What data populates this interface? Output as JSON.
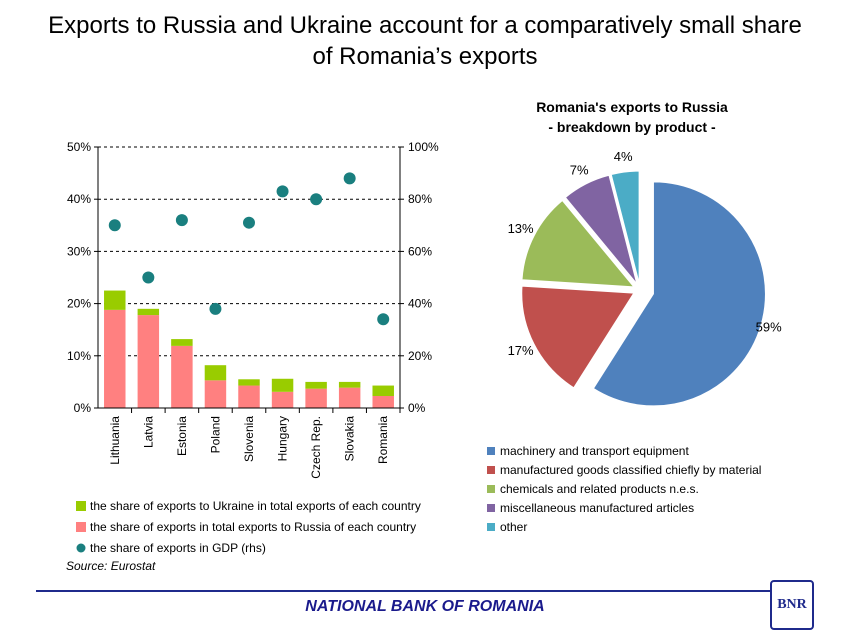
{
  "page": {
    "title_line1": "Exports to Russia and Ukraine account for a comparatively small share",
    "title_line2": "of Romania’s exports",
    "source": "Source: Eurostat",
    "footer": "NATIONAL BANK OF ROMANIA",
    "logo_text": "BNR"
  },
  "chart_data": [
    {
      "type": "bar",
      "stacked": true,
      "categories": [
        "Lithuania",
        "Latvia",
        "Estonia",
        "Poland",
        "Slovenia",
        "Hungary",
        "Czech Rep.",
        "Slovakia",
        "Romania"
      ],
      "series": [
        {
          "name": "the share of exports in total exports to Russia of each country",
          "color": "#ff8080",
          "values": [
            18.8,
            17.8,
            11.9,
            5.3,
            4.3,
            3.1,
            3.7,
            3.9,
            2.3
          ]
        },
        {
          "name": "the share of exports to Ukraine in total exports of each country",
          "color": "#99cc00",
          "values": [
            3.7,
            1.2,
            1.3,
            2.9,
            1.2,
            2.5,
            1.3,
            1.1,
            2.0
          ]
        }
      ],
      "secondary_series": {
        "name": "the share of exports in GDP (rhs)",
        "type": "scatter",
        "color": "#1a7f7f",
        "values": [
          70,
          50,
          72,
          38,
          71,
          83,
          80,
          88,
          34
        ]
      },
      "ylim": [
        0,
        50
      ],
      "y_ticks": [
        "0%",
        "10%",
        "20%",
        "30%",
        "40%",
        "50%"
      ],
      "y2lim": [
        0,
        100
      ],
      "y2_ticks": [
        "0%",
        "20%",
        "40%",
        "60%",
        "80%",
        "100%"
      ],
      "legend": [
        {
          "label": "the share of exports to Ukraine in total exports of each country",
          "color": "#99cc00",
          "marker": "square"
        },
        {
          "label": "the share of exports in total exports to Russia of each country",
          "color": "#ff8080",
          "marker": "square"
        },
        {
          "label": "the share of exports in GDP (rhs)",
          "color": "#1a7f7f",
          "marker": "circle"
        }
      ]
    },
    {
      "type": "pie",
      "title_line1": "Romania's exports to Russia",
      "title_line2": "- breakdown by product -",
      "slices": [
        {
          "label": "machinery and transport equipment",
          "value": 59,
          "text": "59%",
          "color": "#4f81bd"
        },
        {
          "label": "manufactured goods classified chiefly by material",
          "value": 17,
          "text": "17%",
          "color": "#c0504d"
        },
        {
          "label": "chemicals and related products n.e.s.",
          "value": 13,
          "text": "13%",
          "color": "#9bbb59"
        },
        {
          "label": "miscellaneous manufactured articles",
          "value": 7,
          "text": "7%",
          "color": "#8064a2"
        },
        {
          "label": "other",
          "value": 4,
          "text": "4%",
          "color": "#4bacc6"
        }
      ]
    }
  ]
}
